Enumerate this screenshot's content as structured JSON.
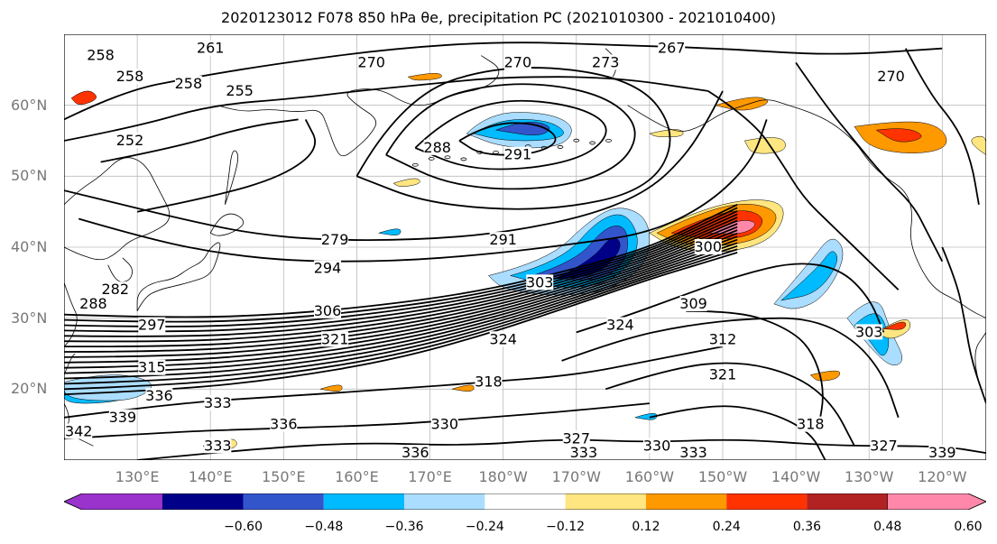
{
  "title": "2020123012 F078 850 hPa θe, precipitation PC (2021010300 - 2021010400)",
  "map": {
    "projection": "PlateCarree",
    "lon_range": [
      120,
      246
    ],
    "lat_range": [
      10,
      70
    ],
    "lat_labels": [
      "60°N",
      "50°N",
      "40°N",
      "30°N",
      "20°N"
    ],
    "lon_labels": [
      "130°E",
      "140°E",
      "150°E",
      "160°E",
      "170°E",
      "180°W",
      "170°W",
      "160°W",
      "150°W",
      "140°W",
      "130°W",
      "120°W"
    ],
    "contour_variable": "850 hPa theta-e (K)",
    "contour_labels": [
      {
        "text": "261",
        "lon": 140,
        "lat": 68
      },
      {
        "text": "258",
        "lon": 125,
        "lat": 67
      },
      {
        "text": "258",
        "lon": 129,
        "lat": 64
      },
      {
        "text": "258",
        "lon": 137,
        "lat": 63
      },
      {
        "text": "255",
        "lon": 144,
        "lat": 62
      },
      {
        "text": "252",
        "lon": 129,
        "lat": 55
      },
      {
        "text": "267",
        "lon": 203,
        "lat": 68
      },
      {
        "text": "273",
        "lon": 194,
        "lat": 66
      },
      {
        "text": "270",
        "lon": 182,
        "lat": 66
      },
      {
        "text": "270",
        "lon": 162,
        "lat": 66
      },
      {
        "text": "270",
        "lon": 233,
        "lat": 64
      },
      {
        "text": "288",
        "lon": 171,
        "lat": 54
      },
      {
        "text": "291",
        "lon": 182,
        "lat": 53
      },
      {
        "text": "279",
        "lon": 157,
        "lat": 41
      },
      {
        "text": "291",
        "lon": 180,
        "lat": 41
      },
      {
        "text": "294",
        "lon": 156,
        "lat": 37
      },
      {
        "text": "300",
        "lon": 208,
        "lat": 40
      },
      {
        "text": "303",
        "lon": 185,
        "lat": 35
      },
      {
        "text": "282",
        "lon": 127,
        "lat": 34
      },
      {
        "text": "288",
        "lon": 124,
        "lat": 32
      },
      {
        "text": "306",
        "lon": 156,
        "lat": 31
      },
      {
        "text": "297",
        "lon": 132,
        "lat": 29
      },
      {
        "text": "309",
        "lon": 206,
        "lat": 32
      },
      {
        "text": "324",
        "lon": 196,
        "lat": 29
      },
      {
        "text": "324",
        "lon": 180,
        "lat": 27
      },
      {
        "text": "303",
        "lon": 230,
        "lat": 28
      },
      {
        "text": "312",
        "lon": 210,
        "lat": 27
      },
      {
        "text": "321",
        "lon": 157,
        "lat": 27
      },
      {
        "text": "315",
        "lon": 132,
        "lat": 23
      },
      {
        "text": "318",
        "lon": 178,
        "lat": 21
      },
      {
        "text": "321",
        "lon": 210,
        "lat": 22
      },
      {
        "text": "336",
        "lon": 133,
        "lat": 19
      },
      {
        "text": "339",
        "lon": 128,
        "lat": 16
      },
      {
        "text": "342",
        "lon": 122,
        "lat": 14
      },
      {
        "text": "333",
        "lon": 141,
        "lat": 18
      },
      {
        "text": "336",
        "lon": 150,
        "lat": 15
      },
      {
        "text": "330",
        "lon": 172,
        "lat": 15
      },
      {
        "text": "318",
        "lon": 222,
        "lat": 15
      },
      {
        "text": "333",
        "lon": 141,
        "lat": 12
      },
      {
        "text": "336",
        "lon": 168,
        "lat": 11
      },
      {
        "text": "327",
        "lon": 190,
        "lat": 13
      },
      {
        "text": "333",
        "lon": 191,
        "lat": 11
      },
      {
        "text": "330",
        "lon": 201,
        "lat": 12
      },
      {
        "text": "333",
        "lon": 206,
        "lat": 11
      },
      {
        "text": "327",
        "lon": 232,
        "lat": 12
      },
      {
        "text": "339",
        "lon": 240,
        "lat": 11
      }
    ]
  },
  "colorbar": {
    "ticks": [
      "−0.60",
      "−0.48",
      "−0.36",
      "−0.24",
      "−0.12",
      "0.12",
      "0.24",
      "0.36",
      "0.48",
      "0.60"
    ],
    "colors": [
      "#9933cc",
      "#000088",
      "#3355cc",
      "#00bbff",
      "#aaddff",
      "#ffffff",
      "#ffe680",
      "#ff9900",
      "#ff3300",
      "#b22222",
      "#ff88aa"
    ],
    "extend": "both"
  }
}
